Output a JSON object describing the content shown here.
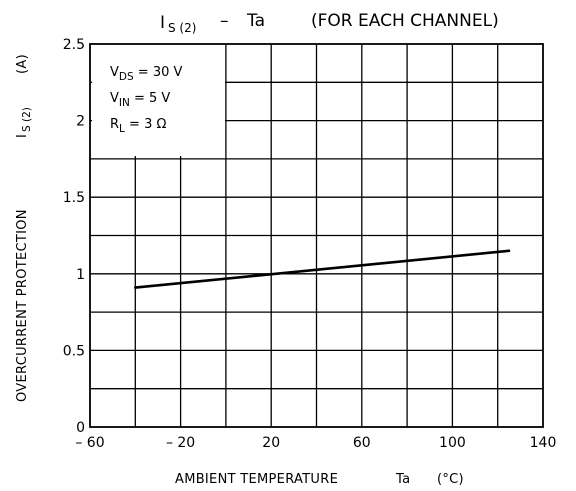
{
  "chart_data": {
    "type": "line",
    "title": {
      "main": "I",
      "main_sub": "S (2)",
      "dash": "–",
      "vs": "Ta",
      "qualifier": "(FOR EACH CHANNEL)"
    },
    "xlabel": "AMBIENT TEMPERATURE",
    "xlabel_symbol": "Ta",
    "xlabel_unit": "(°C)",
    "ylabel": "OVERCURRENT  PROTECTION",
    "ylabel_symbol": "I",
    "ylabel_symbol_sub": "S (2)",
    "ylabel_unit": "(A)",
    "xlim": [
      -60,
      140
    ],
    "ylim": [
      0,
      2.5
    ],
    "x_ticks": [
      -60,
      -20,
      20,
      60,
      100,
      140
    ],
    "x_tick_labels": [
      "– 60",
      "– 20",
      "20",
      "60",
      "100",
      "140"
    ],
    "y_ticks": [
      0,
      0.5,
      1,
      1.5,
      2,
      2.5
    ],
    "y_tick_labels": [
      "0",
      "0.5",
      "1",
      "1.5",
      "2",
      "2.5"
    ],
    "x_grid_step": 20,
    "y_grid_step": 0.25,
    "grid": true,
    "series": [
      {
        "x": [
          -40,
          125
        ],
        "y": [
          0.91,
          1.15
        ]
      }
    ],
    "conditions": [
      {
        "symbol": "V",
        "sub": "DS",
        "rest": " = 30 V"
      },
      {
        "symbol": "V",
        "sub": "IN",
        "rest": " = 5 V"
      },
      {
        "symbol": "R",
        "sub": "L",
        "rest": " = 3 Ω"
      }
    ],
    "conditions_placement": "top-left"
  }
}
